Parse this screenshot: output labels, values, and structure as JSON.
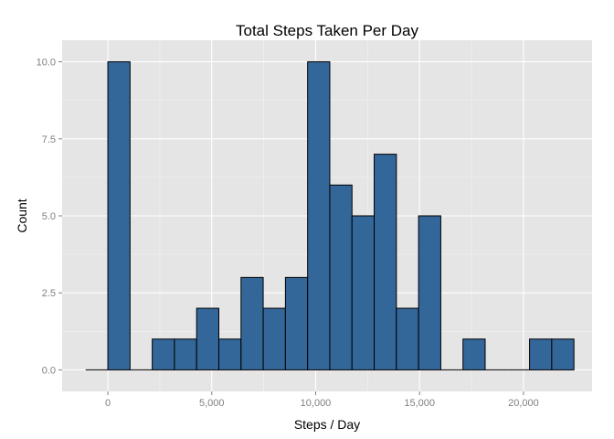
{
  "chart_data": {
    "type": "bar",
    "title": "Total Steps Taken Per Day",
    "xlabel": "Steps / Day",
    "ylabel": "Count",
    "xlim": [
      -2200,
      23300
    ],
    "ylim": [
      -0.7,
      10.7
    ],
    "x_ticks": [
      {
        "value": 0,
        "label": "0"
      },
      {
        "value": 5000,
        "label": "5,000"
      },
      {
        "value": 10000,
        "label": "10,000"
      },
      {
        "value": 15000,
        "label": "15,000"
      },
      {
        "value": 20000,
        "label": "20,000"
      }
    ],
    "y_ticks": [
      {
        "value": 0,
        "label": "0.0"
      },
      {
        "value": 2.5,
        "label": "2.5"
      },
      {
        "value": 5,
        "label": "5.0"
      },
      {
        "value": 7.5,
        "label": "7.5"
      },
      {
        "value": 10,
        "label": "10.0"
      }
    ],
    "bin_width": 1068,
    "bins": [
      {
        "start": -1068,
        "end": 0,
        "count": 0
      },
      {
        "start": 0,
        "end": 1068,
        "count": 10
      },
      {
        "start": 1068,
        "end": 2136,
        "count": 0
      },
      {
        "start": 2136,
        "end": 3204,
        "count": 1
      },
      {
        "start": 3204,
        "end": 4272,
        "count": 1
      },
      {
        "start": 4272,
        "end": 5340,
        "count": 2
      },
      {
        "start": 5340,
        "end": 6408,
        "count": 1
      },
      {
        "start": 6408,
        "end": 7476,
        "count": 3
      },
      {
        "start": 7476,
        "end": 8544,
        "count": 2
      },
      {
        "start": 8544,
        "end": 9612,
        "count": 3
      },
      {
        "start": 9612,
        "end": 10680,
        "count": 10
      },
      {
        "start": 10680,
        "end": 11748,
        "count": 6
      },
      {
        "start": 11748,
        "end": 12816,
        "count": 5
      },
      {
        "start": 12816,
        "end": 13884,
        "count": 7
      },
      {
        "start": 13884,
        "end": 14952,
        "count": 2
      },
      {
        "start": 14952,
        "end": 16020,
        "count": 5
      },
      {
        "start": 16020,
        "end": 17088,
        "count": 0
      },
      {
        "start": 17088,
        "end": 18156,
        "count": 1
      },
      {
        "start": 18156,
        "end": 19224,
        "count": 0
      },
      {
        "start": 19224,
        "end": 20292,
        "count": 0
      },
      {
        "start": 20292,
        "end": 21360,
        "count": 1
      },
      {
        "start": 21360,
        "end": 22428,
        "count": 1
      }
    ],
    "grid": true,
    "legend": "none",
    "colors": {
      "bar_fill": "#336699",
      "bar_stroke": "#000000",
      "panel_background": "#e5e5e5",
      "grid_major": "#ffffff",
      "grid_minor": "#f2f2f2"
    }
  }
}
